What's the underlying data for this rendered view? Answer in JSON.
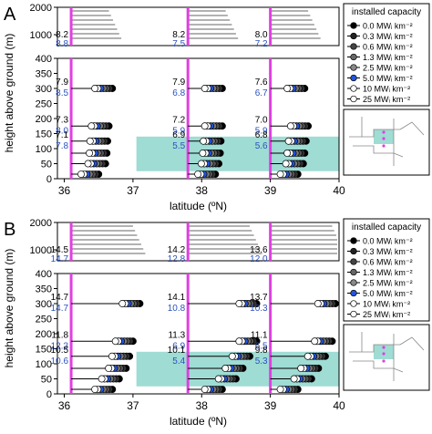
{
  "colors": {
    "magenta": "#e040e0",
    "teal": "#9fdcd4",
    "blue_label": "#2a52be",
    "series": [
      "#000000",
      "#333333",
      "#555555",
      "#777777",
      "#2255dd",
      "#ffffff",
      "#ffffff"
    ]
  },
  "chart_data": [
    {
      "type": "scatter",
      "panel_label": "A",
      "xlabel": "latitude (ºN)",
      "ylabel": "height above ground (m)",
      "xlim": [
        35.9,
        40
      ],
      "x_ticks": [
        "36",
        "37",
        "38",
        "39",
        "40"
      ],
      "ylim_lower": [
        0,
        400
      ],
      "y_ticks_lower": [
        "0",
        "50",
        "100",
        "150",
        "200",
        "250",
        "300",
        "350",
        "400"
      ],
      "ylim_upper": [
        600,
        2000
      ],
      "y_ticks_upper": [
        "1000",
        "2000"
      ],
      "legend_title": "installed capacity",
      "legend": [
        "0.0 MWᵢ km⁻²",
        "0.3 MWᵢ km⁻²",
        "0.6 MWᵢ km⁻²",
        "1.3 MWᵢ km⁻²",
        "2.5 MWᵢ km⁻²",
        "5.0 MWᵢ km⁻²",
        "10 MWᵢ km⁻²",
        "25 MWᵢ km⁻²"
      ],
      "vlines": [
        36.1,
        37.8,
        39.0
      ],
      "shaded_y": [
        25,
        140
      ],
      "shaded_x": [
        37.05,
        40
      ],
      "groups": [
        {
          "x0": 36.1,
          "rows": [
            {
              "h": 300,
              "black": "7.9",
              "blue": "8.5",
              "end": 36.7
            },
            {
              "h": 175,
              "black": "7.3",
              "blue": "8.0",
              "end": 36.65
            },
            {
              "h": 125,
              "black": "7.1",
              "blue": "7.8",
              "end": 36.63
            },
            {
              "h": 85,
              "black": "",
              "blue": "",
              "end": 36.62
            },
            {
              "h": 50,
              "black": "",
              "blue": "",
              "end": 36.6
            },
            {
              "h": 15,
              "black": "",
              "blue": "",
              "end": 36.5
            }
          ],
          "upper": {
            "black": "8.2",
            "blue": "8.8"
          }
        },
        {
          "x0": 37.8,
          "rows": [
            {
              "h": 300,
              "black": "7.9",
              "blue": "6.8",
              "end": 38.3
            },
            {
              "h": 175,
              "black": "7.2",
              "blue": "5.9",
              "end": 38.3
            },
            {
              "h": 125,
              "black": "6.9",
              "blue": "5.5",
              "end": 38.28
            },
            {
              "h": 85,
              "black": "",
              "blue": "",
              "end": 38.27
            },
            {
              "h": 50,
              "black": "",
              "blue": "",
              "end": 38.25
            },
            {
              "h": 15,
              "black": "",
              "blue": "",
              "end": 38.2
            }
          ],
          "upper": {
            "black": "8.2",
            "blue": "7.5"
          }
        },
        {
          "x0": 39.0,
          "rows": [
            {
              "h": 300,
              "black": "7.6",
              "blue": "6.7",
              "end": 39.5
            },
            {
              "h": 175,
              "black": "7.0",
              "blue": "5.9",
              "end": 39.55
            },
            {
              "h": 125,
              "black": "6.8",
              "blue": "5.6",
              "end": 39.52
            },
            {
              "h": 85,
              "black": "",
              "blue": "",
              "end": 39.5
            },
            {
              "h": 50,
              "black": "",
              "blue": "",
              "end": 39.48
            },
            {
              "h": 15,
              "black": "",
              "blue": "",
              "end": 39.4
            }
          ],
          "upper": {
            "black": "8.0",
            "blue": "7.2"
          }
        }
      ]
    },
    {
      "type": "scatter",
      "panel_label": "B",
      "xlabel": "latitude (ºN)",
      "ylabel": "height above ground (m)",
      "xlim": [
        35.9,
        40
      ],
      "x_ticks": [
        "36",
        "37",
        "38",
        "39",
        "40"
      ],
      "ylim_lower": [
        0,
        400
      ],
      "y_ticks_lower": [
        "0",
        "50",
        "100",
        "150",
        "200",
        "250",
        "300",
        "350",
        "400"
      ],
      "ylim_upper": [
        600,
        2000
      ],
      "y_ticks_upper": [
        "1000",
        "2000"
      ],
      "legend_title": "installed capacity",
      "legend": [
        "0.0 MWᵢ km⁻²",
        "0.3 MWᵢ km⁻²",
        "0.6 MWᵢ km⁻²",
        "1.3 MWᵢ km⁻²",
        "2.5 MWᵢ km⁻²",
        "5.0 MWᵢ km⁻²",
        "10 MWᵢ km⁻²",
        "25 MWᵢ km⁻²"
      ],
      "vlines": [
        36.1,
        37.8,
        39.0
      ],
      "shaded_y": [
        25,
        140
      ],
      "shaded_x": [
        37.05,
        40
      ],
      "groups": [
        {
          "x0": 36.1,
          "rows": [
            {
              "h": 300,
              "black": "14.7",
              "blue": "14.7",
              "end": 37.1
            },
            {
              "h": 175,
              "black": "11.8",
              "blue": "12.3",
              "end": 37.0
            },
            {
              "h": 125,
              "black": "10.5",
              "blue": "10.6",
              "end": 36.95
            },
            {
              "h": 85,
              "black": "",
              "blue": "",
              "end": 36.9
            },
            {
              "h": 50,
              "black": "",
              "blue": "",
              "end": 36.8
            },
            {
              "h": 15,
              "black": "",
              "blue": "",
              "end": 36.7
            }
          ],
          "upper": {
            "black": "14.5",
            "blue": "14.7"
          }
        },
        {
          "x0": 37.8,
          "rows": [
            {
              "h": 300,
              "black": "14.1",
              "blue": "10.8",
              "end": 38.8
            },
            {
              "h": 175,
              "black": "11.3",
              "blue": "6.9",
              "end": 38.8
            },
            {
              "h": 125,
              "black": "10.1",
              "blue": "5.4",
              "end": 38.7
            },
            {
              "h": 85,
              "black": "",
              "blue": "",
              "end": 38.6
            },
            {
              "h": 50,
              "black": "",
              "blue": "",
              "end": 38.5
            },
            {
              "h": 15,
              "black": "",
              "blue": "",
              "end": 38.3
            }
          ],
          "upper": {
            "black": "14.2",
            "blue": "12.8"
          }
        },
        {
          "x0": 39.0,
          "rows": [
            {
              "h": 300,
              "black": "13.7",
              "blue": "10.3",
              "end": 40.0
            },
            {
              "h": 175,
              "black": "11.1",
              "blue": "6.5",
              "end": 39.9
            },
            {
              "h": 125,
              "black": "9.8",
              "blue": "5.3",
              "end": 39.8
            },
            {
              "h": 85,
              "black": "",
              "blue": "",
              "end": 39.7
            },
            {
              "h": 50,
              "black": "",
              "blue": "",
              "end": 39.6
            },
            {
              "h": 15,
              "black": "",
              "blue": "",
              "end": 39.4
            }
          ],
          "upper": {
            "black": "13.6",
            "blue": "12.0"
          }
        }
      ]
    }
  ]
}
